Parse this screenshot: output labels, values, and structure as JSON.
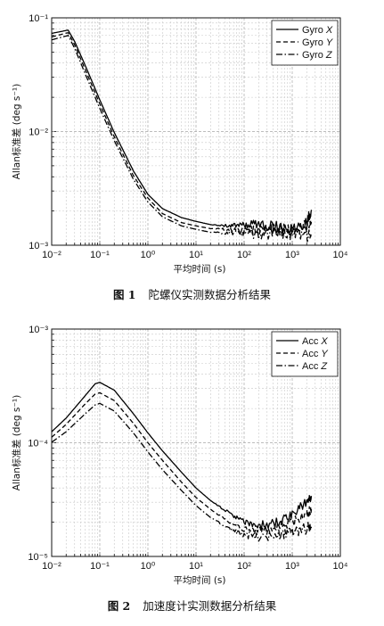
{
  "figures": [
    {
      "caption_num": "图 1",
      "caption_text": "陀螺仪实测数据分析结果"
    },
    {
      "caption_num": "图 2",
      "caption_text": "加速度计实测数据分析结果"
    }
  ],
  "chart_data": [
    {
      "type": "line",
      "xscale": "log",
      "yscale": "log",
      "xlabel": "平均时间 (s)",
      "ylabel": "Allan标准差 (deg s⁻¹)",
      "xlim": [
        0.01,
        10000
      ],
      "ylim": [
        0.001,
        0.1
      ],
      "xticks": [
        "10⁻²",
        "10⁻¹",
        "10⁰",
        "10¹",
        "10²",
        "10³",
        "10⁴"
      ],
      "yticks": [
        "10⁻³",
        "10⁻²",
        "10⁻¹"
      ],
      "grid": true,
      "legend": "top-right",
      "series": [
        {
          "name": "Gyro X",
          "dash": "solid",
          "noise": 0.1,
          "x": [
            0.01,
            0.022,
            0.03,
            0.05,
            0.1,
            0.2,
            0.5,
            1,
            2,
            5,
            10,
            20,
            50,
            100,
            200,
            500,
            1000,
            2000,
            2500
          ],
          "y": [
            0.073,
            0.078,
            0.062,
            0.038,
            0.019,
            0.0098,
            0.0045,
            0.0028,
            0.0021,
            0.00175,
            0.00162,
            0.00152,
            0.00148,
            0.0015,
            0.00155,
            0.00145,
            0.0014,
            0.0016,
            0.00205
          ]
        },
        {
          "name": "Gyro Y",
          "dash": "dashed",
          "noise": 0.12,
          "x": [
            0.01,
            0.022,
            0.03,
            0.05,
            0.1,
            0.2,
            0.5,
            1,
            2,
            5,
            10,
            20,
            50,
            100,
            200,
            500,
            1000,
            2000,
            2500
          ],
          "y": [
            0.068,
            0.074,
            0.058,
            0.035,
            0.0175,
            0.009,
            0.0041,
            0.0026,
            0.0019,
            0.00158,
            0.00148,
            0.0014,
            0.00136,
            0.00135,
            0.00132,
            0.00138,
            0.0013,
            0.0015,
            0.0016
          ]
        },
        {
          "name": "Gyro Z",
          "dash": "dashdot",
          "noise": 0.12,
          "x": [
            0.01,
            0.022,
            0.03,
            0.05,
            0.1,
            0.2,
            0.5,
            1,
            2,
            5,
            10,
            20,
            50,
            100,
            200,
            500,
            1000,
            2000,
            2500
          ],
          "y": [
            0.064,
            0.07,
            0.054,
            0.032,
            0.016,
            0.0083,
            0.0038,
            0.0024,
            0.00178,
            0.00148,
            0.00138,
            0.0013,
            0.00128,
            0.00128,
            0.00125,
            0.0013,
            0.00125,
            0.00122,
            0.0013
          ]
        }
      ],
      "legend_entries": [
        {
          "label": "Gyro",
          "axis": "X"
        },
        {
          "label": "Gyro",
          "axis": "Y"
        },
        {
          "label": "Gyro",
          "axis": "Z"
        }
      ]
    },
    {
      "type": "line",
      "xscale": "log",
      "yscale": "log",
      "xlabel": "平均时间 (s)",
      "ylabel": "Allan标准差 (deg s⁻¹)",
      "xlim": [
        0.01,
        10000
      ],
      "ylim": [
        1e-05,
        0.001
      ],
      "xticks": [
        "10⁻²",
        "10⁻¹",
        "10⁰",
        "10¹",
        "10²",
        "10³",
        "10⁴"
      ],
      "yticks": [
        "10⁻⁵",
        "10⁻⁴",
        "10⁻³"
      ],
      "grid": true,
      "legend": "top-right",
      "series": [
        {
          "name": "Acc X",
          "dash": "solid",
          "noise": 0.09,
          "x": [
            0.01,
            0.02,
            0.05,
            0.08,
            0.1,
            0.2,
            0.5,
            1,
            2,
            5,
            10,
            20,
            50,
            100,
            200,
            500,
            1000,
            2000,
            2500
          ],
          "y": [
            0.000125,
            0.000165,
            0.00026,
            0.00033,
            0.00034,
            0.00029,
            0.00018,
            0.000122,
            8.5e-05,
            5.5e-05,
            4e-05,
            3.1e-05,
            2.4e-05,
            2e-05,
            1.85e-05,
            2e-05,
            2.3e-05,
            3e-05,
            3.4e-05
          ]
        },
        {
          "name": "Acc Y",
          "dash": "dashed",
          "noise": 0.09,
          "x": [
            0.01,
            0.02,
            0.05,
            0.08,
            0.1,
            0.2,
            0.5,
            1,
            2,
            5,
            10,
            20,
            50,
            100,
            200,
            500,
            1000,
            2000,
            2500
          ],
          "y": [
            0.000112,
            0.000145,
            0.00022,
            0.000268,
            0.000275,
            0.000235,
            0.000148,
            0.0001,
            7e-05,
            4.5e-05,
            3.3e-05,
            2.6e-05,
            2e-05,
            1.75e-05,
            1.65e-05,
            1.85e-05,
            2e-05,
            2.3e-05,
            2.6e-05
          ]
        },
        {
          "name": "Acc Z",
          "dash": "dashdot",
          "noise": 0.1,
          "x": [
            0.01,
            0.02,
            0.05,
            0.08,
            0.1,
            0.2,
            0.5,
            1,
            2,
            5,
            10,
            20,
            50,
            100,
            200,
            500,
            1000,
            2000,
            2500
          ],
          "y": [
            0.000101,
            0.000125,
            0.00018,
            0.000215,
            0.000222,
            0.00019,
            0.000122,
            8.3e-05,
            5.8e-05,
            3.8e-05,
            2.8e-05,
            2.2e-05,
            1.75e-05,
            1.55e-05,
            1.48e-05,
            1.55e-05,
            1.65e-05,
            1.75e-05,
            1.85e-05
          ]
        }
      ],
      "legend_entries": [
        {
          "label": "Acc",
          "axis": "X"
        },
        {
          "label": "Acc",
          "axis": "Y"
        },
        {
          "label": "Acc",
          "axis": "Z"
        }
      ]
    }
  ]
}
